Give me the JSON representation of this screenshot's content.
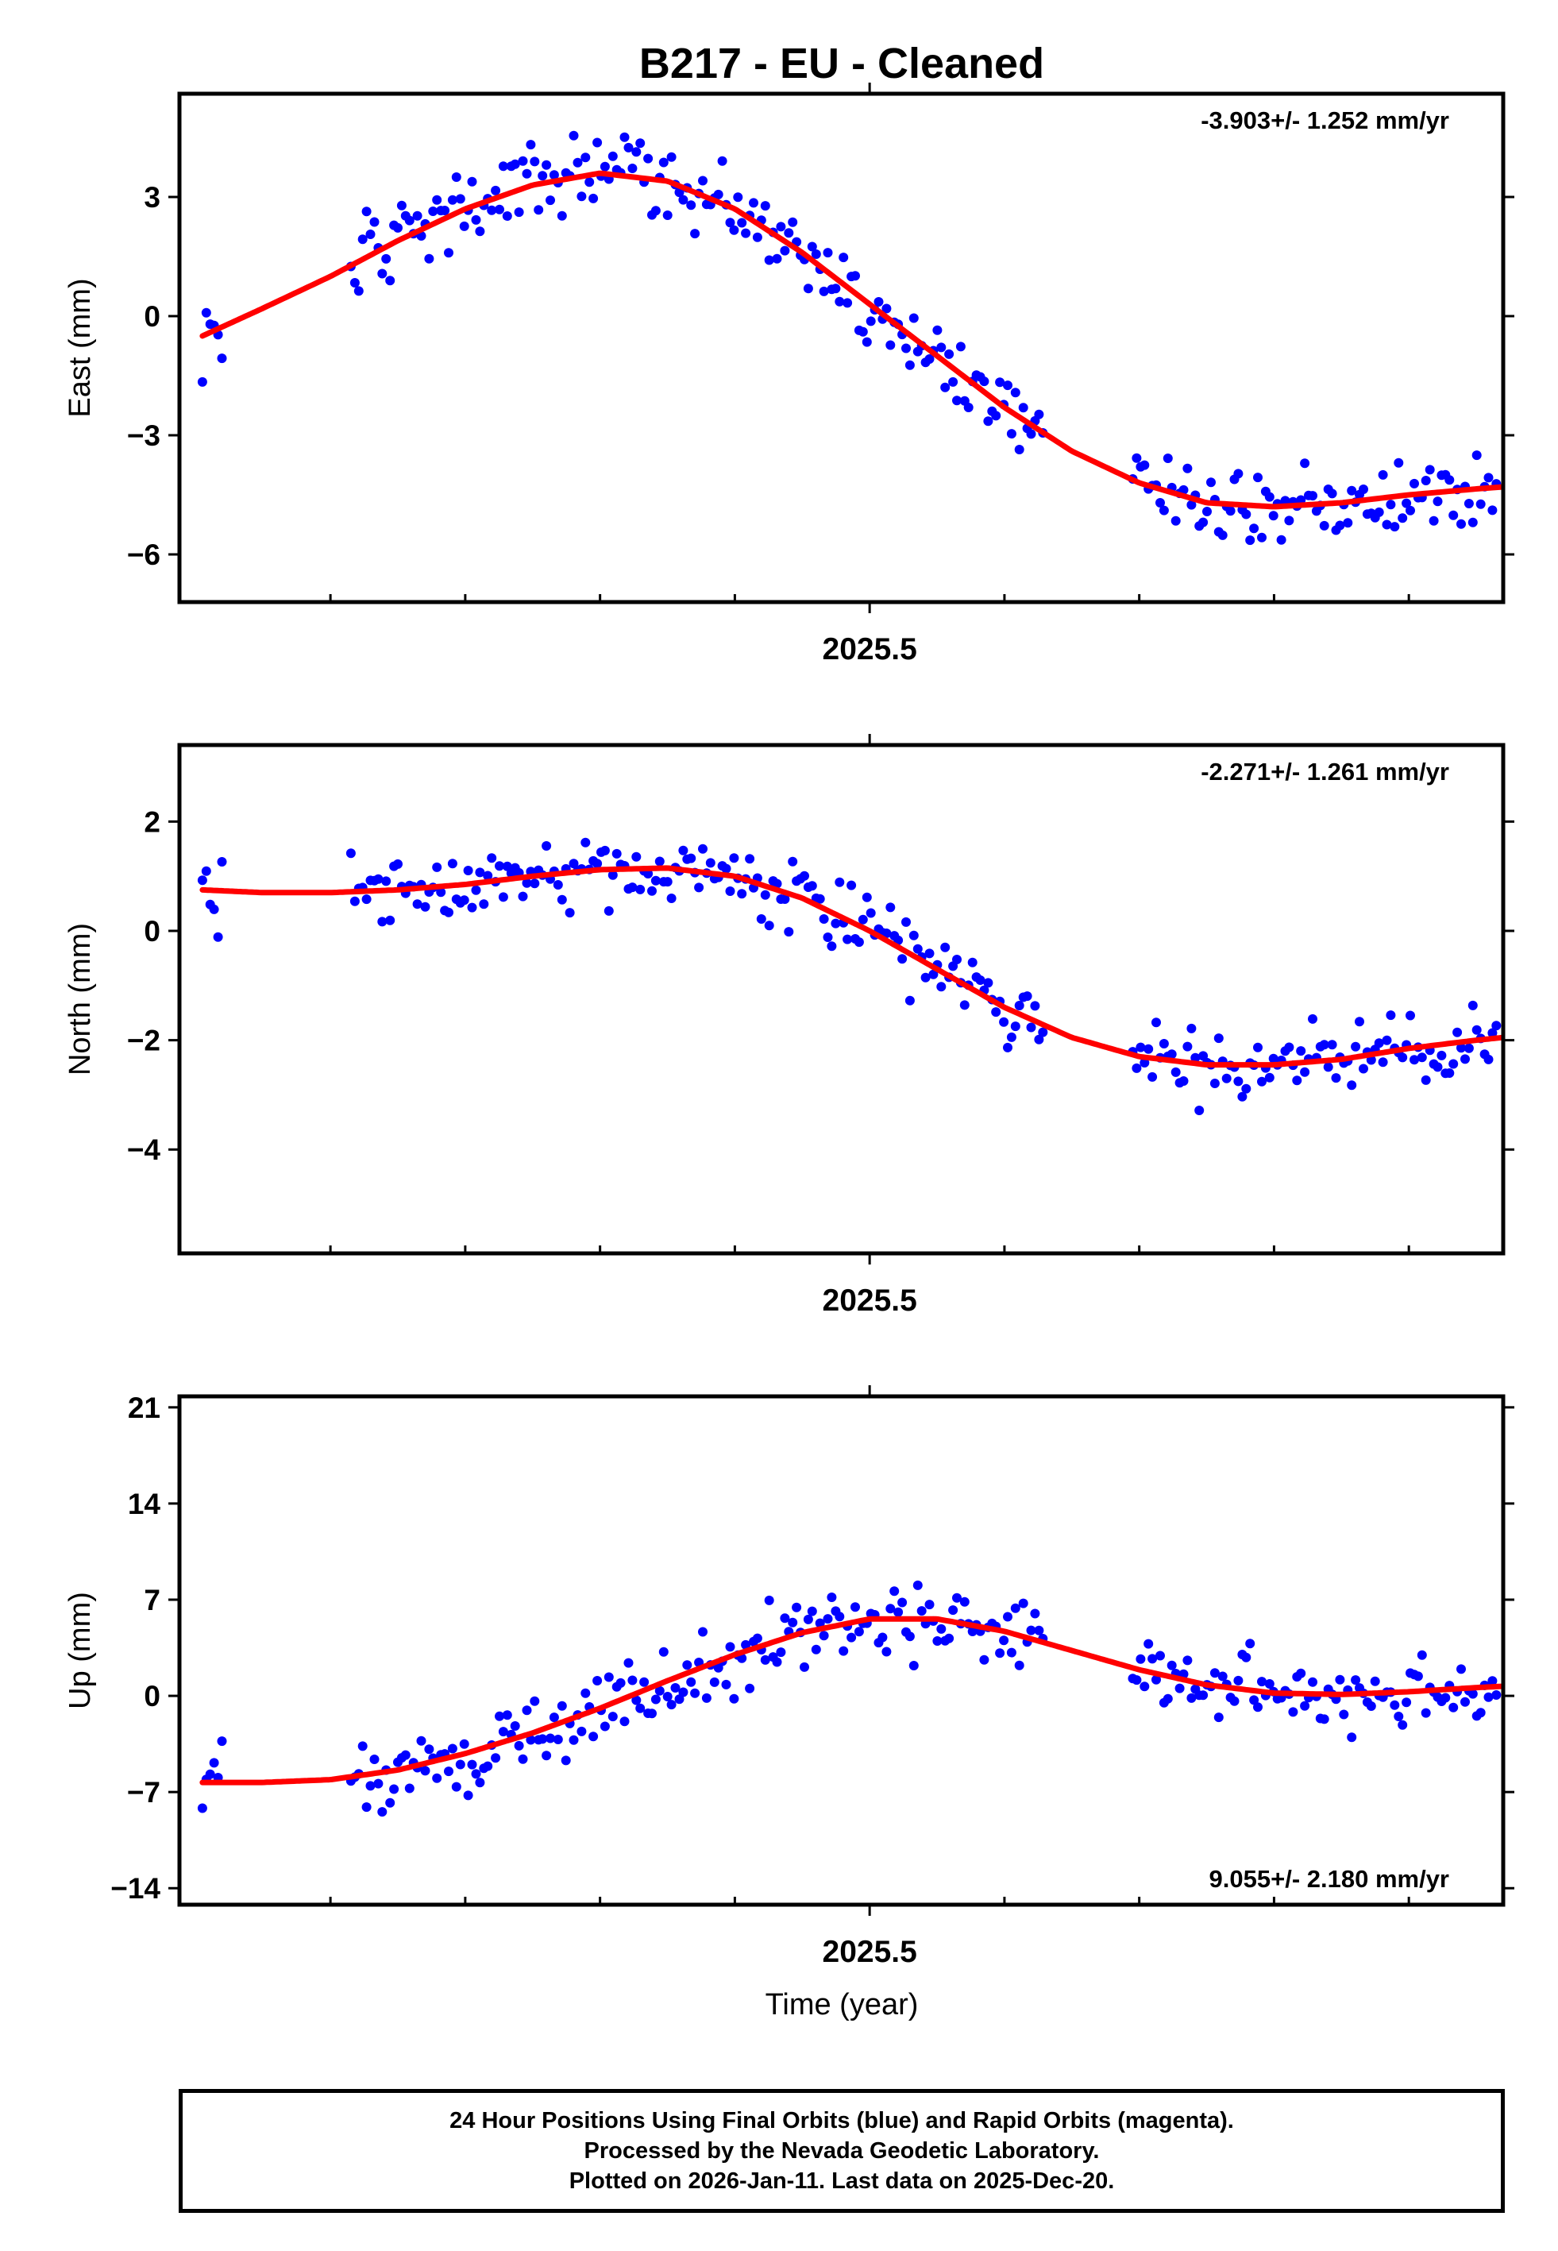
{
  "title": "B217  - EU - Cleaned",
  "colors": {
    "data_points": "#0000ff",
    "model_curve": "#ff0000",
    "frame": "#000000"
  },
  "x_axis": {
    "label": "Time (year)",
    "tick_label": "2025.5",
    "xlim": [
      2024.988,
      2025.97
    ]
  },
  "chart_data": [
    {
      "type": "scatter",
      "name": "east",
      "ylabel": "East (mm)",
      "ylim": [
        -7.2,
        5.6
      ],
      "yticks": [
        3,
        0,
        -3,
        -6
      ],
      "ytick_labels": [
        "3",
        "0",
        "−3",
        "−6"
      ],
      "rate_annotation": "-3.903+/- 1.252 mm/yr",
      "annotation_position": "top-right",
      "curve": {
        "x": [
          2025.005,
          2025.05,
          2025.1,
          2025.15,
          2025.2,
          2025.25,
          2025.3,
          2025.35,
          2025.4,
          2025.45,
          2025.5,
          2025.55,
          2025.6,
          2025.65,
          2025.7,
          2025.75,
          2025.8,
          2025.85,
          2025.9,
          2025.95,
          2025.97
        ],
        "y": [
          -0.5,
          0.2,
          1.0,
          1.9,
          2.7,
          3.3,
          3.6,
          3.4,
          2.7,
          1.6,
          0.3,
          -1.0,
          -2.3,
          -3.4,
          -4.2,
          -4.7,
          -4.8,
          -4.7,
          -4.5,
          -4.35,
          -4.3
        ]
      }
    },
    {
      "type": "scatter",
      "name": "north",
      "ylabel": "North (mm)",
      "ylim": [
        -5.9,
        3.4
      ],
      "yticks": [
        2,
        0,
        -2,
        -4
      ],
      "ytick_labels": [
        "2",
        "0",
        "−2",
        "−4"
      ],
      "rate_annotation": "-2.271+/- 1.261 mm/yr",
      "annotation_position": "top-right",
      "curve": {
        "x": [
          2025.005,
          2025.05,
          2025.1,
          2025.15,
          2025.2,
          2025.25,
          2025.3,
          2025.35,
          2025.4,
          2025.45,
          2025.5,
          2025.55,
          2025.6,
          2025.65,
          2025.7,
          2025.75,
          2025.8,
          2025.85,
          2025.9,
          2025.95,
          2025.97
        ],
        "y": [
          0.75,
          0.7,
          0.7,
          0.75,
          0.85,
          1.0,
          1.12,
          1.15,
          1.0,
          0.6,
          0.0,
          -0.7,
          -1.4,
          -1.95,
          -2.3,
          -2.45,
          -2.45,
          -2.35,
          -2.15,
          -2.0,
          -1.95
        ]
      }
    },
    {
      "type": "scatter",
      "name": "up",
      "ylabel": "Up (mm)",
      "ylim": [
        -15.2,
        21.8
      ],
      "yticks": [
        21,
        14,
        7,
        0,
        -7,
        -14
      ],
      "ytick_labels": [
        "21",
        "14",
        "7",
        "0",
        "−7",
        "−14"
      ],
      "rate_annotation": "9.055+/- 2.180 mm/yr",
      "annotation_position": "bottom-right",
      "curve": {
        "x": [
          2025.005,
          2025.05,
          2025.1,
          2025.15,
          2025.2,
          2025.25,
          2025.3,
          2025.35,
          2025.4,
          2025.45,
          2025.5,
          2025.55,
          2025.6,
          2025.65,
          2025.7,
          2025.75,
          2025.8,
          2025.85,
          2025.9,
          2025.95,
          2025.97
        ],
        "y": [
          -6.3,
          -6.3,
          -6.1,
          -5.4,
          -4.2,
          -2.7,
          -0.9,
          1.1,
          3.0,
          4.6,
          5.6,
          5.6,
          4.7,
          3.3,
          1.9,
          0.8,
          0.2,
          0.1,
          0.3,
          0.6,
          0.7
        ]
      }
    }
  ],
  "footer": {
    "line1": "24 Hour Positions Using Final Orbits (blue) and Rapid Orbits (magenta).",
    "line2": "Processed by the Nevada Geodetic Laboratory.",
    "line3": "Plotted on 2026-Jan-11. Last data on 2025-Dec-20."
  }
}
